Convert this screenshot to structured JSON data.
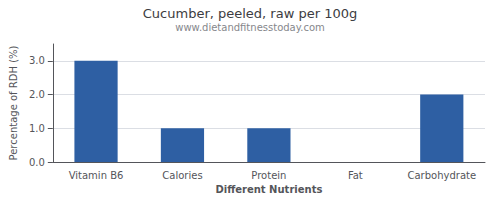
{
  "chart_data": {
    "type": "bar",
    "title": "Cucumber, peeled, raw per 100g",
    "subtitle": "www.dietandfitnesstoday.com",
    "xlabel": "Different Nutrients",
    "ylabel": "Percentage of RDH (%)",
    "categories": [
      "Vitamin B6",
      "Calories",
      "Protein",
      "Fat",
      "Carbohydrate"
    ],
    "values": [
      3.0,
      1.0,
      1.0,
      0.0,
      2.0
    ],
    "color": "#2e5fa3",
    "ylim": [
      0,
      3.5
    ],
    "yticks": [
      {
        "value": 0.0,
        "label": "0.0"
      },
      {
        "value": 1.0,
        "label": "1.0"
      },
      {
        "value": 2.0,
        "label": "2.0"
      },
      {
        "value": 3.0,
        "label": "3.0"
      }
    ],
    "grid": true
  }
}
